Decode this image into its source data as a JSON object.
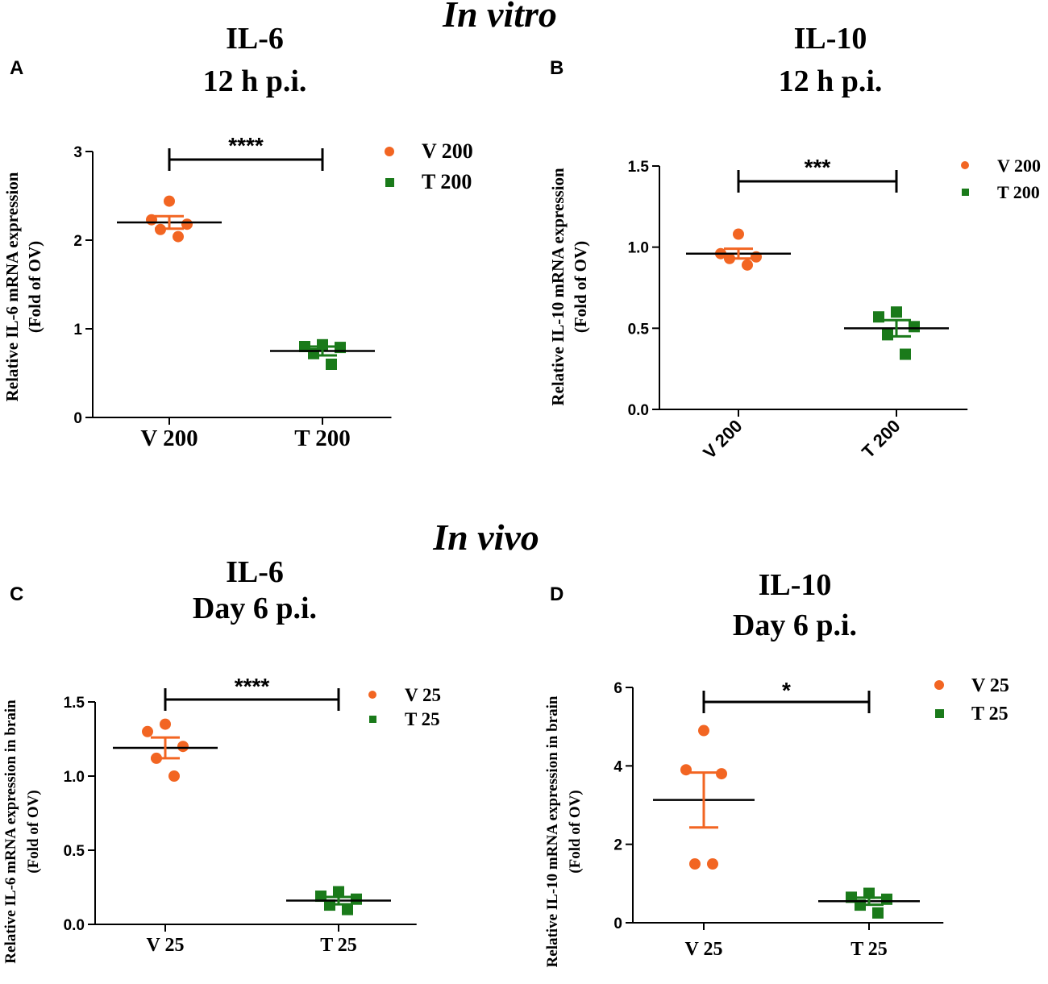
{
  "section_titles": {
    "in_vitro": "In vitro",
    "in_vivo": "In vivo"
  },
  "colors": {
    "v": "#F26522",
    "t": "#1A7A1A",
    "t_dark": "#1E5E1E",
    "axis": "#000000"
  },
  "chart_data": [
    {
      "id": "A",
      "type": "scatter",
      "panel_label": "A",
      "title_line1": "IL-6",
      "title_line2": "12 h p.i.",
      "ylabel_line1": "Relative IL-6 mRNA expression",
      "ylabel_line2": "(Fold of OV)",
      "ylim": [
        0,
        3
      ],
      "yticks": [
        "0",
        "1",
        "2",
        "3"
      ],
      "categories": [
        "V 200",
        "T 200"
      ],
      "rotate_xticks": false,
      "series": [
        {
          "name": "V 200",
          "marker": "circle",
          "points": [
            2.44,
            2.23,
            2.18,
            2.12,
            2.04
          ],
          "mean": 2.2,
          "sem": 0.07
        },
        {
          "name": "T 200",
          "marker": "square",
          "points": [
            0.82,
            0.8,
            0.79,
            0.72,
            0.6
          ],
          "mean": 0.75,
          "sem": 0.05
        }
      ],
      "significance": "****"
    },
    {
      "id": "B",
      "type": "scatter",
      "panel_label": "B",
      "title_line1": "IL-10",
      "title_line2": "12 h p.i.",
      "ylabel_line1": "Relative IL-10 mRNA expression",
      "ylabel_line2": "(Fold of OV)",
      "ylim": [
        0,
        1.5
      ],
      "yticks": [
        "0.0",
        "0.5",
        "1.0",
        "1.5"
      ],
      "categories": [
        "V 200",
        "T 200"
      ],
      "rotate_xticks": true,
      "series": [
        {
          "name": "V 200",
          "marker": "circle",
          "points": [
            1.08,
            0.96,
            0.94,
            0.93,
            0.89
          ],
          "mean": 0.96,
          "sem": 0.03
        },
        {
          "name": "T 200",
          "marker": "square",
          "points": [
            0.6,
            0.57,
            0.51,
            0.46,
            0.34
          ],
          "mean": 0.5,
          "sem": 0.05
        }
      ],
      "significance": "***"
    },
    {
      "id": "C",
      "type": "scatter",
      "panel_label": "C",
      "title_line1": "IL-6",
      "title_line2": "Day 6 p.i.",
      "ylabel_line1": "Relative IL-6 mRNA expression in brain",
      "ylabel_line2": "(Fold of OV)",
      "ylim": [
        0,
        1.5
      ],
      "yticks": [
        "0.0",
        "0.5",
        "1.0",
        "1.5"
      ],
      "categories": [
        "V 25",
        "T 25"
      ],
      "rotate_xticks": false,
      "series": [
        {
          "name": "V 25",
          "marker": "circle",
          "points": [
            1.35,
            1.3,
            1.2,
            1.12,
            1.0
          ],
          "mean": 1.19,
          "sem": 0.07
        },
        {
          "name": "T 25",
          "marker": "square",
          "points": [
            0.22,
            0.19,
            0.17,
            0.13,
            0.1
          ],
          "mean": 0.16,
          "sem": 0.025
        }
      ],
      "significance": "****"
    },
    {
      "id": "D",
      "type": "scatter",
      "panel_label": "D",
      "title_line1": "IL-10",
      "title_line2": "Day 6 p.i.",
      "ylabel_line1": "Relative IL-10 mRNA expression in brain",
      "ylabel_line2": "(Fold of OV)",
      "ylim": [
        0,
        6
      ],
      "yticks": [
        "0",
        "2",
        "4",
        "6"
      ],
      "categories": [
        "V 25",
        "T 25"
      ],
      "rotate_xticks": false,
      "series": [
        {
          "name": "V 25",
          "marker": "circle",
          "points": [
            4.9,
            3.9,
            3.8,
            1.5,
            1.5
          ],
          "mean": 3.13,
          "sem": 0.7
        },
        {
          "name": "T 25",
          "marker": "square",
          "points": [
            0.75,
            0.65,
            0.6,
            0.45,
            0.25
          ],
          "mean": 0.55,
          "sem": 0.09
        }
      ],
      "significance": "*"
    }
  ]
}
